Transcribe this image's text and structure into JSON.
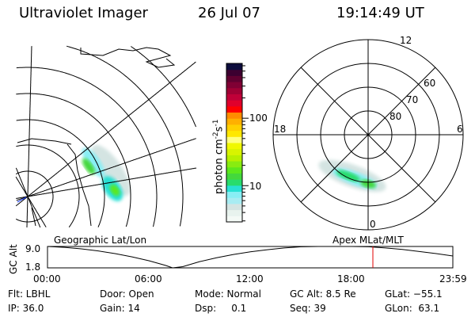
{
  "header": {
    "instrument": "Ultraviolet Imager",
    "date": "26 Jul 07",
    "time": "19:14:49 UT"
  },
  "geo_map": {
    "label": "Geographic Lat/Lon"
  },
  "polar_map": {
    "label": "Apex MLat/MLT",
    "mlt_labels": {
      "top": "12",
      "left": "18",
      "right": "6",
      "bottom": "0"
    },
    "lat_labels": [
      "80",
      "70",
      "60"
    ]
  },
  "colorbar": {
    "unit_label": "photon cm",
    "unit_sup1": "-2",
    "unit_mid": "s",
    "unit_sup2": "-1",
    "scale": "log",
    "range": [
      2.9,
      650
    ],
    "tick_labels": [
      "100",
      "10"
    ],
    "colors": [
      "#f4faf6",
      "#e8f3ee",
      "#d4e4e2",
      "#a8ecf2",
      "#88eef4",
      "#28e0d4",
      "#28dc6c",
      "#44d83c",
      "#5ce81c",
      "#88ec10",
      "#b8f000",
      "#d8f400",
      "#f0f800",
      "#ffff80",
      "#ffe800",
      "#ffd000",
      "#ffb000",
      "#ff8c00",
      "#ff0000",
      "#e0002c",
      "#c00038",
      "#a00034",
      "#800034",
      "#600030",
      "#3c0030",
      "#0c0c3c"
    ]
  },
  "chart_data": {
    "type": "line",
    "ylabel": "GC Alt",
    "ytick_labels": [
      "9.0",
      "1.8"
    ],
    "ylim": [
      1.8,
      9.0
    ],
    "xlim": [
      0,
      23.98
    ],
    "xtick_labels": [
      "00:00",
      "06:00",
      "12:00",
      "18:00",
      "23:59"
    ],
    "xticks": [
      0,
      6,
      12,
      18,
      23.98
    ],
    "x": [
      0,
      1,
      2,
      3,
      4,
      5,
      6,
      7,
      7.4,
      8,
      9,
      10,
      11,
      12,
      13,
      14,
      15,
      16,
      17,
      18,
      19,
      20,
      21,
      22,
      23,
      24
    ],
    "y": [
      9.0,
      8.7,
      8.2,
      7.5,
      6.6,
      5.5,
      4.2,
      2.6,
      1.8,
      2.2,
      3.9,
      5.2,
      6.3,
      7.2,
      7.9,
      8.5,
      8.9,
      9.0,
      9.0,
      9.0,
      8.9,
      8.5,
      8.0,
      7.3,
      6.6,
      5.8
    ],
    "current_time": 19.25,
    "current_time_color": "#e00000",
    "grid": false
  },
  "status": {
    "flt": "Flt: LBHL",
    "door": "Door: Open",
    "mode": "Mode: Normal",
    "gc_alt": "GC Alt: 8.5 Re",
    "glat": "GLat: −55.1",
    "ip": "IP: 36.0",
    "gain": "Gain: 14",
    "dsp": "Dsp:     0.1",
    "seq": "Seq: 39",
    "glon": "GLon:  63.1"
  }
}
